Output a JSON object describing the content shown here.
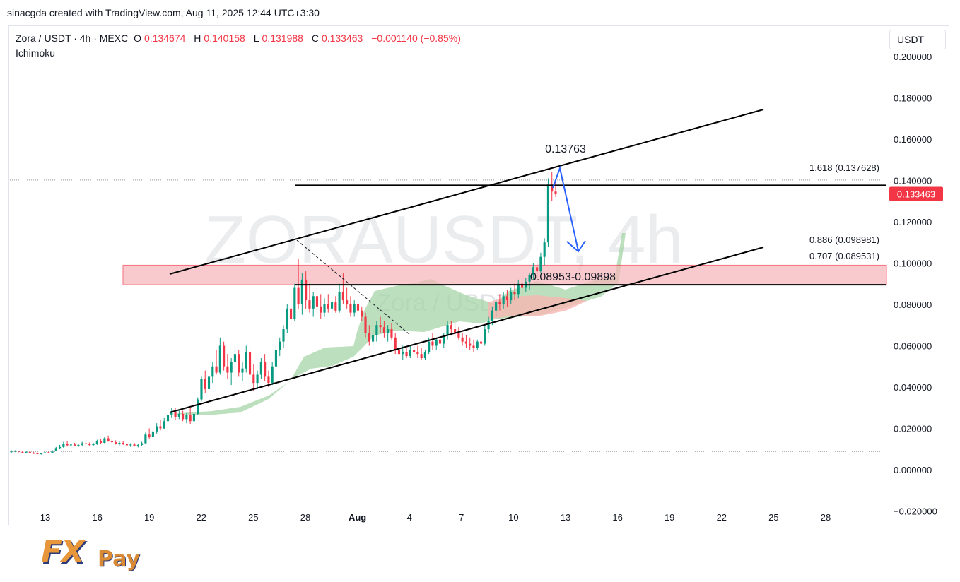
{
  "header": {
    "credit": "sinacgda created with TradingView.com, Aug 11, 2025 12:44 UTC+3:30",
    "symbol": "Zora / USDT · 4h · MEXC",
    "o_label": "O",
    "o_value": "0.134674",
    "h_label": "H",
    "h_value": "0.140158",
    "l_label": "L",
    "l_value": "0.131988",
    "c_label": "C",
    "c_value": "0.133463",
    "change": "−0.001140 (−0.85%)",
    "indicator": "Ichimoku",
    "currency_button": "USDT"
  },
  "watermark": {
    "main": "ZORAUSDT, 4h",
    "sub": "Zora / USDT"
  },
  "logo": {
    "fx": "FX",
    "pay": "Pay"
  },
  "colors": {
    "up": "#089981",
    "down": "#f23645",
    "zone_fill": "#f7b4b8",
    "cloud_green": "#a5d6a7",
    "cloud_red": "#f7b7b3",
    "arrow": "#2962ff",
    "last_price_bg": "#f23645"
  },
  "chart_data": {
    "type": "candlestick",
    "title": "",
    "y_ticks": [
      "0.200000",
      "0.180000",
      "0.160000",
      "0.140000",
      "0.120000",
      "0.100000",
      "0.080000",
      "0.060000",
      "0.040000",
      "0.020000",
      "0.000000",
      "−0.020000"
    ],
    "x_ticks": [
      "13",
      "16",
      "19",
      "22",
      "25",
      "28",
      "Aug",
      "4",
      "7",
      "10",
      "13",
      "16",
      "19",
      "22",
      "25",
      "28"
    ],
    "ylim": [
      -0.027,
      0.215
    ],
    "last_price": 0.133463,
    "last_price_label": "0.133463",
    "fib_levels": [
      {
        "label": "1.618 (0.137628)",
        "value": 0.137628
      },
      {
        "label": "0.886 (0.098981)",
        "value": 0.098981
      },
      {
        "label": "0.707 (0.089531)",
        "value": 0.089531
      }
    ],
    "annotations": {
      "peak": "0.13763",
      "zone": "0.08953-0.09898"
    },
    "candles": [
      [
        0.0085,
        0.0095,
        0.0082,
        0.0088
      ],
      [
        0.0088,
        0.0094,
        0.0085,
        0.009
      ],
      [
        0.009,
        0.0092,
        0.0084,
        0.0086
      ],
      [
        0.0086,
        0.009,
        0.0082,
        0.0084
      ],
      [
        0.0084,
        0.0089,
        0.008,
        0.0086
      ],
      [
        0.0086,
        0.0088,
        0.0079,
        0.0081
      ],
      [
        0.0081,
        0.0085,
        0.0076,
        0.0079
      ],
      [
        0.0079,
        0.0083,
        0.0074,
        0.0077
      ],
      [
        0.0077,
        0.0081,
        0.0073,
        0.0079
      ],
      [
        0.0079,
        0.0086,
        0.0077,
        0.0084
      ],
      [
        0.0084,
        0.009,
        0.008,
        0.0082
      ],
      [
        0.0082,
        0.0095,
        0.008,
        0.0092
      ],
      [
        0.0092,
        0.011,
        0.009,
        0.0105
      ],
      [
        0.0105,
        0.012,
        0.01,
        0.011
      ],
      [
        0.011,
        0.0135,
        0.0106,
        0.0125
      ],
      [
        0.0125,
        0.014,
        0.0112,
        0.0118
      ],
      [
        0.0118,
        0.0128,
        0.011,
        0.0122
      ],
      [
        0.0122,
        0.013,
        0.0114,
        0.0116
      ],
      [
        0.0116,
        0.0124,
        0.011,
        0.012
      ],
      [
        0.012,
        0.0135,
        0.0116,
        0.0128
      ],
      [
        0.0128,
        0.014,
        0.012,
        0.0124
      ],
      [
        0.0124,
        0.0132,
        0.0115,
        0.0119
      ],
      [
        0.0119,
        0.013,
        0.0114,
        0.0126
      ],
      [
        0.0126,
        0.0145,
        0.012,
        0.0138
      ],
      [
        0.0138,
        0.015,
        0.0125,
        0.013
      ],
      [
        0.013,
        0.016,
        0.0128,
        0.0152
      ],
      [
        0.0152,
        0.0165,
        0.0135,
        0.014
      ],
      [
        0.014,
        0.015,
        0.0128,
        0.0133
      ],
      [
        0.0133,
        0.0142,
        0.0122,
        0.0126
      ],
      [
        0.0126,
        0.0136,
        0.0118,
        0.013
      ],
      [
        0.013,
        0.014,
        0.012,
        0.0124
      ],
      [
        0.0124,
        0.0132,
        0.0112,
        0.0118
      ],
      [
        0.0118,
        0.0128,
        0.011,
        0.0122
      ],
      [
        0.0122,
        0.013,
        0.0112,
        0.0116
      ],
      [
        0.0116,
        0.0126,
        0.0108,
        0.012
      ],
      [
        0.012,
        0.0135,
        0.0115,
        0.0128
      ],
      [
        0.0128,
        0.018,
        0.0125,
        0.017
      ],
      [
        0.017,
        0.02,
        0.015,
        0.016
      ],
      [
        0.016,
        0.0195,
        0.0155,
        0.0185
      ],
      [
        0.0185,
        0.0225,
        0.0175,
        0.021
      ],
      [
        0.021,
        0.024,
        0.019,
        0.02
      ],
      [
        0.02,
        0.025,
        0.0195,
        0.0235
      ],
      [
        0.0235,
        0.028,
        0.0225,
        0.0265
      ],
      [
        0.0265,
        0.03,
        0.025,
        0.028
      ],
      [
        0.028,
        0.03,
        0.024,
        0.0255
      ],
      [
        0.0255,
        0.0285,
        0.0245,
        0.027
      ],
      [
        0.027,
        0.0285,
        0.0235,
        0.0245
      ],
      [
        0.0245,
        0.0275,
        0.0225,
        0.0265
      ],
      [
        0.0265,
        0.03,
        0.022,
        0.0235
      ],
      [
        0.0235,
        0.028,
        0.0225,
        0.027
      ],
      [
        0.027,
        0.035,
        0.0265,
        0.034
      ],
      [
        0.034,
        0.045,
        0.033,
        0.044
      ],
      [
        0.044,
        0.048,
        0.037,
        0.039
      ],
      [
        0.039,
        0.047,
        0.037,
        0.045
      ],
      [
        0.045,
        0.052,
        0.042,
        0.05
      ],
      [
        0.05,
        0.058,
        0.046,
        0.047
      ],
      [
        0.047,
        0.064,
        0.046,
        0.06
      ],
      [
        0.06,
        0.062,
        0.048,
        0.05
      ],
      [
        0.05,
        0.056,
        0.044,
        0.047
      ],
      [
        0.047,
        0.054,
        0.041,
        0.052
      ],
      [
        0.052,
        0.06,
        0.048,
        0.056
      ],
      [
        0.056,
        0.058,
        0.045,
        0.047
      ],
      [
        0.047,
        0.052,
        0.043,
        0.049
      ],
      [
        0.049,
        0.06,
        0.047,
        0.057
      ],
      [
        0.057,
        0.059,
        0.044,
        0.046
      ],
      [
        0.046,
        0.051,
        0.038,
        0.042
      ],
      [
        0.042,
        0.048,
        0.039,
        0.046
      ],
      [
        0.046,
        0.054,
        0.044,
        0.052
      ],
      [
        0.052,
        0.056,
        0.043,
        0.045
      ],
      [
        0.045,
        0.048,
        0.04,
        0.042
      ],
      [
        0.042,
        0.052,
        0.041,
        0.05
      ],
      [
        0.05,
        0.06,
        0.049,
        0.058
      ],
      [
        0.058,
        0.064,
        0.055,
        0.062
      ],
      [
        0.062,
        0.07,
        0.059,
        0.068
      ],
      [
        0.068,
        0.08,
        0.066,
        0.078
      ],
      [
        0.078,
        0.086,
        0.07,
        0.073
      ],
      [
        0.073,
        0.09,
        0.072,
        0.088
      ],
      [
        0.088,
        0.102,
        0.078,
        0.08
      ],
      [
        0.08,
        0.095,
        0.075,
        0.092
      ],
      [
        0.092,
        0.096,
        0.078,
        0.082
      ],
      [
        0.082,
        0.09,
        0.076,
        0.078
      ],
      [
        0.078,
        0.086,
        0.074,
        0.084
      ],
      [
        0.084,
        0.088,
        0.076,
        0.079
      ],
      [
        0.079,
        0.085,
        0.073,
        0.076
      ],
      [
        0.076,
        0.083,
        0.074,
        0.08
      ],
      [
        0.08,
        0.085,
        0.076,
        0.078
      ],
      [
        0.078,
        0.082,
        0.074,
        0.081
      ],
      [
        0.081,
        0.084,
        0.076,
        0.077
      ],
      [
        0.077,
        0.09,
        0.076,
        0.086
      ],
      [
        0.086,
        0.095,
        0.08,
        0.082
      ],
      [
        0.082,
        0.088,
        0.078,
        0.08
      ],
      [
        0.08,
        0.084,
        0.074,
        0.076
      ],
      [
        0.076,
        0.082,
        0.074,
        0.08
      ],
      [
        0.08,
        0.083,
        0.075,
        0.077
      ],
      [
        0.077,
        0.079,
        0.072,
        0.074
      ],
      [
        0.074,
        0.076,
        0.064,
        0.066
      ],
      [
        0.066,
        0.07,
        0.06,
        0.062
      ],
      [
        0.062,
        0.068,
        0.06,
        0.065
      ],
      [
        0.065,
        0.072,
        0.062,
        0.07
      ],
      [
        0.07,
        0.074,
        0.066,
        0.069
      ],
      [
        0.069,
        0.072,
        0.064,
        0.066
      ],
      [
        0.066,
        0.07,
        0.062,
        0.068
      ],
      [
        0.068,
        0.071,
        0.063,
        0.064
      ],
      [
        0.064,
        0.066,
        0.056,
        0.058
      ],
      [
        0.058,
        0.062,
        0.054,
        0.056
      ],
      [
        0.056,
        0.06,
        0.053,
        0.057
      ],
      [
        0.057,
        0.059,
        0.054,
        0.055
      ],
      [
        0.055,
        0.06,
        0.054,
        0.058
      ],
      [
        0.058,
        0.062,
        0.056,
        0.057
      ],
      [
        0.057,
        0.06,
        0.054,
        0.056
      ],
      [
        0.056,
        0.059,
        0.053,
        0.054
      ],
      [
        0.054,
        0.058,
        0.053,
        0.057
      ],
      [
        0.057,
        0.064,
        0.056,
        0.062
      ],
      [
        0.062,
        0.066,
        0.058,
        0.06
      ],
      [
        0.06,
        0.064,
        0.058,
        0.063
      ],
      [
        0.063,
        0.068,
        0.06,
        0.061
      ],
      [
        0.061,
        0.066,
        0.059,
        0.065
      ],
      [
        0.065,
        0.072,
        0.063,
        0.07
      ],
      [
        0.07,
        0.072,
        0.066,
        0.068
      ],
      [
        0.068,
        0.071,
        0.064,
        0.066
      ],
      [
        0.066,
        0.069,
        0.063,
        0.064
      ],
      [
        0.064,
        0.066,
        0.06,
        0.062
      ],
      [
        0.062,
        0.065,
        0.059,
        0.061
      ],
      [
        0.061,
        0.064,
        0.058,
        0.06
      ],
      [
        0.06,
        0.063,
        0.057,
        0.059
      ],
      [
        0.059,
        0.063,
        0.058,
        0.062
      ],
      [
        0.062,
        0.066,
        0.059,
        0.061
      ],
      [
        0.061,
        0.07,
        0.06,
        0.068
      ],
      [
        0.068,
        0.074,
        0.066,
        0.072
      ],
      [
        0.072,
        0.079,
        0.07,
        0.077
      ],
      [
        0.077,
        0.083,
        0.074,
        0.081
      ],
      [
        0.081,
        0.085,
        0.077,
        0.08
      ],
      [
        0.08,
        0.086,
        0.078,
        0.084
      ],
      [
        0.084,
        0.087,
        0.079,
        0.082
      ],
      [
        0.082,
        0.088,
        0.08,
        0.086
      ],
      [
        0.086,
        0.09,
        0.082,
        0.085
      ],
      [
        0.085,
        0.092,
        0.083,
        0.09
      ],
      [
        0.09,
        0.094,
        0.085,
        0.088
      ],
      [
        0.088,
        0.093,
        0.086,
        0.091
      ],
      [
        0.091,
        0.095,
        0.087,
        0.094
      ],
      [
        0.094,
        0.1,
        0.092,
        0.098
      ],
      [
        0.098,
        0.101,
        0.093,
        0.096
      ],
      [
        0.096,
        0.105,
        0.095,
        0.103
      ],
      [
        0.103,
        0.112,
        0.099,
        0.11
      ],
      [
        0.11,
        0.141,
        0.108,
        0.138
      ],
      [
        0.138,
        0.144,
        0.13,
        0.1346
      ],
      [
        0.1346,
        0.1402,
        0.132,
        0.1335
      ]
    ]
  }
}
